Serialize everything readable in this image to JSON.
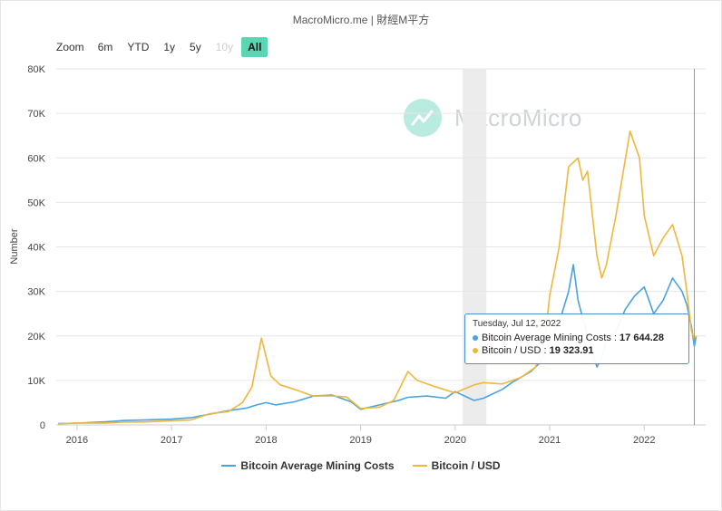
{
  "credit": "MacroMicro.me | 財經M平方",
  "watermark": "MacroMicro",
  "zoom": {
    "label": "Zoom",
    "buttons": [
      {
        "label": "6m",
        "state": "normal"
      },
      {
        "label": "YTD",
        "state": "normal"
      },
      {
        "label": "1y",
        "state": "normal"
      },
      {
        "label": "5y",
        "state": "normal"
      },
      {
        "label": "10y",
        "state": "disabled"
      },
      {
        "label": "All",
        "state": "active"
      }
    ]
  },
  "tooltip": {
    "date": "Tuesday, Jul 12, 2022",
    "rows": [
      {
        "label": "Bitcoin Average Mining Costs",
        "value": "17 644.28",
        "color": "#4aa3df"
      },
      {
        "label": "Bitcoin / USD",
        "value": "19 323.91",
        "color": "#f0b73d"
      }
    ]
  },
  "chart_data": {
    "type": "line",
    "title": "",
    "xlabel": "",
    "ylabel": "Number",
    "ylim": [
      0,
      80000
    ],
    "xlim": [
      2015.78,
      2022.65
    ],
    "y_ticks": [
      0,
      10000,
      20000,
      30000,
      40000,
      50000,
      60000,
      70000,
      80000
    ],
    "y_tick_labels": [
      "0",
      "10K",
      "20K",
      "30K",
      "40K",
      "50K",
      "60K",
      "70K",
      "80K"
    ],
    "x_ticks": [
      2016,
      2017,
      2018,
      2019,
      2020,
      2021,
      2022
    ],
    "x_tick_labels": [
      "2016",
      "2017",
      "2018",
      "2019",
      "2020",
      "2021",
      "2022"
    ],
    "grid": true,
    "legend": "bottom-center",
    "plot_band": [
      2020.08,
      2020.33
    ],
    "crosshair_x": 2022.53,
    "series": [
      {
        "name": "Bitcoin Average Mining Costs",
        "color": "#4aa3df",
        "x": [
          2015.8,
          2016.0,
          2016.3,
          2016.5,
          2016.7,
          2017.0,
          2017.2,
          2017.4,
          2017.6,
          2017.8,
          2017.9,
          2018.0,
          2018.1,
          2018.3,
          2018.5,
          2018.7,
          2018.9,
          2019.0,
          2019.2,
          2019.4,
          2019.5,
          2019.7,
          2019.9,
          2020.0,
          2020.2,
          2020.3,
          2020.5,
          2020.6,
          2020.8,
          2020.9,
          2021.0,
          2021.1,
          2021.2,
          2021.25,
          2021.3,
          2021.4,
          2021.5,
          2021.55,
          2021.6,
          2021.7,
          2021.8,
          2021.9,
          2022.0,
          2022.1,
          2022.2,
          2022.3,
          2022.4,
          2022.45,
          2022.5,
          2022.53,
          2022.55
        ],
        "y": [
          300,
          400,
          700,
          1000,
          1100,
          1300,
          1600,
          2400,
          3200,
          3800,
          4500,
          5000,
          4500,
          5200,
          6500,
          6700,
          5200,
          3500,
          4500,
          5500,
          6200,
          6500,
          6000,
          7500,
          5500,
          6000,
          8000,
          9500,
          12000,
          14000,
          19000,
          23000,
          30000,
          36000,
          28000,
          20000,
          13000,
          15000,
          19000,
          21000,
          26000,
          29000,
          31000,
          25000,
          28000,
          33000,
          30000,
          27000,
          22000,
          17644,
          20000
        ]
      },
      {
        "name": "Bitcoin / USD",
        "color": "#f0b73d",
        "x": [
          2015.8,
          2016.0,
          2016.3,
          2016.5,
          2016.7,
          2017.0,
          2017.2,
          2017.4,
          2017.6,
          2017.75,
          2017.85,
          2017.95,
          2018.05,
          2018.15,
          2018.3,
          2018.5,
          2018.7,
          2018.85,
          2019.0,
          2019.2,
          2019.35,
          2019.5,
          2019.6,
          2019.8,
          2020.0,
          2020.2,
          2020.3,
          2020.5,
          2020.7,
          2020.85,
          2020.95,
          2021.0,
          2021.1,
          2021.2,
          2021.3,
          2021.35,
          2021.4,
          2021.5,
          2021.55,
          2021.6,
          2021.7,
          2021.85,
          2021.95,
          2022.0,
          2022.1,
          2022.2,
          2022.3,
          2022.4,
          2022.45,
          2022.5,
          2022.53,
          2022.55
        ],
        "y": [
          250,
          430,
          420,
          650,
          650,
          950,
          1100,
          2500,
          3000,
          5000,
          8500,
          19500,
          11000,
          9000,
          8000,
          6500,
          6500,
          6300,
          3700,
          4000,
          5500,
          12000,
          10000,
          8500,
          7200,
          9000,
          9500,
          9200,
          10700,
          13000,
          19000,
          29000,
          40000,
          58000,
          60000,
          55000,
          57000,
          38000,
          33000,
          36000,
          47000,
          66000,
          60000,
          47000,
          38000,
          42000,
          45000,
          38000,
          30000,
          21000,
          19324,
          20000
        ]
      }
    ]
  }
}
